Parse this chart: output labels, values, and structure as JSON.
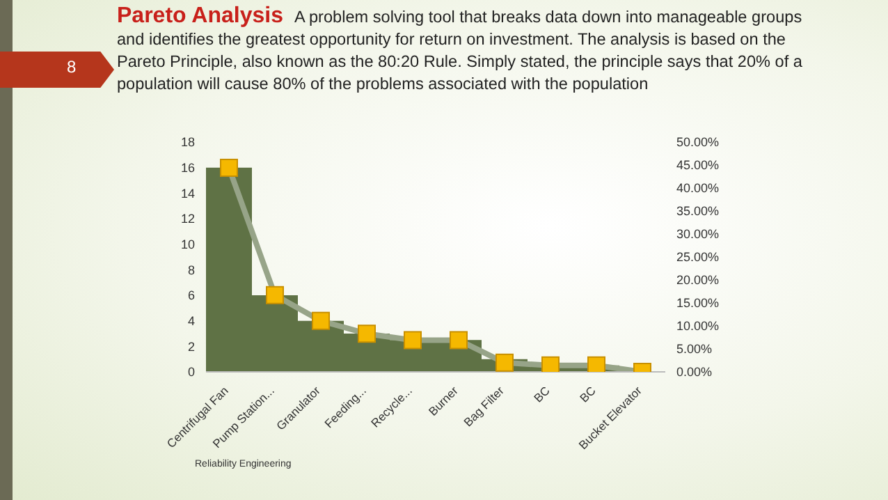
{
  "chart_data": {
    "type": "bar",
    "title": "Pareto Analysis",
    "subtitle": "A problem solving tool that breaks data down into manageable groups and identifies the greatest opportunity for return on investment.  The analysis is based on the Pareto Principle, also known as the 80:20 Rule.  Simply stated, the principle says that 20% of a population will cause 80% of the problems associated with the population",
    "annotations": [
      "8",
      "Reliability Engineering"
    ],
    "categories": [
      "Centrifugal Fan",
      "Pump Station...",
      "Granulator",
      "Feeding...",
      "Recycle...",
      "Burner",
      "Bag Filter",
      "BC",
      "BC",
      "Bucket Elevator"
    ],
    "series": [
      {
        "color": "#5f7245",
        "values": [
          16,
          6,
          4,
          3,
          2.5,
          2.5,
          1,
          0.5,
          0.5,
          0
        ]
      },
      {
        "type": "line",
        "axis": "y2",
        "color": "#97a488",
        "marker": "square",
        "values": [
          44.4,
          16.7,
          11.1,
          8.3,
          6.9,
          6.9,
          2,
          1.4,
          1.4,
          0
        ]
      }
    ],
    "ylim": [
      0,
      18
    ],
    "yticks": [
      0,
      2,
      4,
      6,
      8,
      10,
      12,
      14,
      16,
      18
    ],
    "y2lim": [
      0,
      50
    ],
    "y2ticks": [
      {
        "value": 0,
        "label": "0.00%"
      },
      {
        "value": 5,
        "label": "5.00%"
      },
      {
        "value": 10,
        "label": "10.00%"
      },
      {
        "value": 15,
        "label": "15.00%"
      },
      {
        "value": 20,
        "label": "20.00%"
      },
      {
        "value": 25,
        "label": "25.00%"
      },
      {
        "value": 30,
        "label": "30.00%"
      },
      {
        "value": 35,
        "label": "35.00%"
      },
      {
        "value": 40,
        "label": "40.00%"
      },
      {
        "value": 45,
        "label": "45.00%"
      },
      {
        "value": 50,
        "label": "50.00%"
      }
    ],
    "grid": false,
    "legend": false
  }
}
